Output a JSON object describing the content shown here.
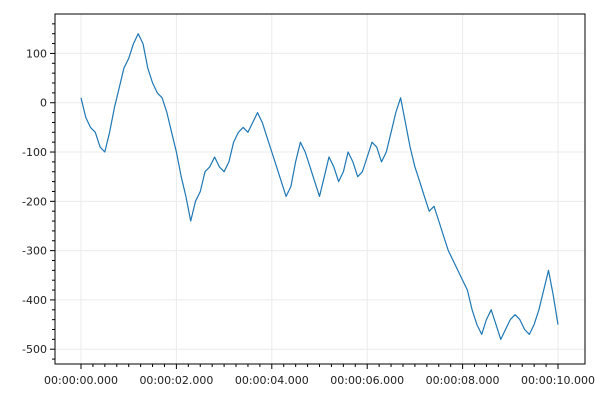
{
  "chart_data": {
    "type": "line",
    "title": "",
    "xlabel": "",
    "ylabel": "",
    "x_range_seconds": [
      0,
      10
    ],
    "ylim": [
      -530,
      180
    ],
    "grid": true,
    "legend": "none",
    "colors": {
      "line": "#1f77b4",
      "grid": "#ebebeb",
      "frame": "#000000",
      "background": "#ffffff"
    },
    "x_ticks": [
      {
        "v": 0,
        "label": "00:00:00.000"
      },
      {
        "v": 2,
        "label": "00:00:02.000"
      },
      {
        "v": 4,
        "label": "00:00:04.000"
      },
      {
        "v": 6,
        "label": "00:00:06.000"
      },
      {
        "v": 8,
        "label": "00:00:08.000"
      },
      {
        "v": 10,
        "label": "00:00:10.000"
      }
    ],
    "y_ticks": [
      {
        "v": 100,
        "label": "100"
      },
      {
        "v": 0,
        "label": "0"
      },
      {
        "v": -100,
        "label": "-100"
      },
      {
        "v": -200,
        "label": "-200"
      },
      {
        "v": -300,
        "label": "-300"
      },
      {
        "v": -400,
        "label": "-400"
      },
      {
        "v": -500,
        "label": "-500"
      }
    ],
    "series": [
      {
        "x": [
          0,
          0.1,
          0.2,
          0.3,
          0.4,
          0.5,
          0.6,
          0.7,
          0.8,
          0.9,
          1.0,
          1.1,
          1.2,
          1.3,
          1.4,
          1.5,
          1.6,
          1.7,
          1.8,
          1.9,
          2.0,
          2.1,
          2.2,
          2.3,
          2.4,
          2.5,
          2.6,
          2.7,
          2.8,
          2.9,
          3.0,
          3.1,
          3.2,
          3.3,
          3.4,
          3.5,
          3.6,
          3.7,
          3.8,
          3.9,
          4.0,
          4.1,
          4.2,
          4.3,
          4.4,
          4.5,
          4.6,
          4.7,
          4.8,
          4.9,
          5.0,
          5.1,
          5.2,
          5.3,
          5.4,
          5.5,
          5.6,
          5.7,
          5.8,
          5.9,
          6.0,
          6.1,
          6.2,
          6.3,
          6.4,
          6.5,
          6.6,
          6.7,
          6.8,
          6.9,
          7.0,
          7.1,
          7.2,
          7.3,
          7.4,
          7.5,
          7.6,
          7.7,
          7.8,
          7.9,
          8.0,
          8.1,
          8.2,
          8.3,
          8.4,
          8.5,
          8.6,
          8.7,
          8.8,
          8.9,
          9.0,
          9.1,
          9.2,
          9.3,
          9.4,
          9.5,
          9.6,
          9.7,
          9.8,
          9.9,
          10.0
        ],
        "y": [
          10,
          -30,
          -50,
          -60,
          -90,
          -100,
          -60,
          -10,
          30,
          70,
          90,
          120,
          140,
          120,
          70,
          40,
          20,
          10,
          -20,
          -60,
          -100,
          -150,
          -190,
          -240,
          -200,
          -180,
          -140,
          -130,
          -110,
          -130,
          -140,
          -120,
          -80,
          -60,
          -50,
          -60,
          -40,
          -20,
          -40,
          -70,
          -100,
          -130,
          -160,
          -190,
          -170,
          -120,
          -80,
          -100,
          -130,
          -160,
          -190,
          -150,
          -110,
          -130,
          -160,
          -140,
          -100,
          -120,
          -150,
          -140,
          -110,
          -80,
          -90,
          -120,
          -100,
          -60,
          -20,
          10,
          -40,
          -90,
          -130,
          -160,
          -190,
          -220,
          -210,
          -240,
          -270,
          -300,
          -320,
          -340,
          -360,
          -380,
          -420,
          -450,
          -470,
          -440,
          -420,
          -450,
          -480,
          -460,
          -440,
          -430,
          -440,
          -460,
          -470,
          -450,
          -420,
          -380,
          -340,
          -390,
          -450
        ]
      }
    ]
  }
}
